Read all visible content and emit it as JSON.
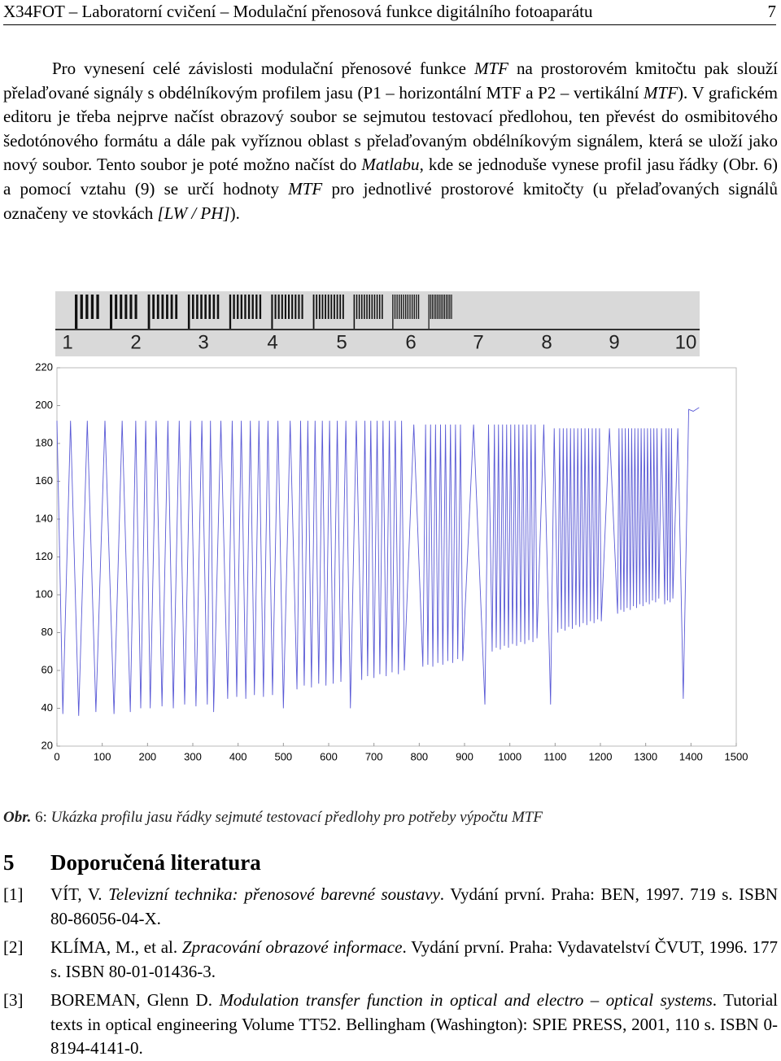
{
  "header": {
    "title": "X34FOT – Laboratorní cvičení – Modulační přenosová funkce digitálního fotoaparátu",
    "page": "7"
  },
  "paragraph": {
    "runs": [
      {
        "text": "Pro vynesení celé závislosti modulační přenosové funkce "
      },
      {
        "text": "MTF",
        "italic": true
      },
      {
        "text": " na prostorovém kmitočtu pak slouží přelaďované signály s obdélníkovým profilem jasu (P1 – horizontální MTF a P2 – vertikální "
      },
      {
        "text": "MTF",
        "italic": true
      },
      {
        "text": "). V grafickém editoru je třeba nejprve načíst obrazový soubor se sejmutou testovací předlohou, ten převést do osmibitového šedotónového formátu a dále pak vyříznou oblast s přelaďovaným obdélníkovým signálem, která se uloží jako nový soubor. Tento soubor je poté možno načíst do "
      },
      {
        "text": "Matlabu",
        "italic": true
      },
      {
        "text": ", kde se jednoduše vynese profil jasu řádky (Obr. 6) a pomocí vztahu (9) se určí hodnoty "
      },
      {
        "text": "MTF",
        "italic": true
      },
      {
        "text": " pro jednotlivé prostorové kmitočty (u přelaďovaných signálů označeny ve stovkách "
      },
      {
        "text": "[LW / PH]",
        "italic": true
      },
      {
        "text": ")."
      }
    ]
  },
  "figure": {
    "scale_labels": [
      "1",
      "2",
      "3",
      "4",
      "5",
      "6",
      "7",
      "8",
      "9",
      "10"
    ],
    "chart_data": {
      "type": "line",
      "x": [
        0,
        13,
        30,
        48,
        67,
        86,
        106,
        126,
        144,
        162,
        174,
        185,
        196,
        206,
        219,
        232,
        245,
        257,
        270,
        282,
        295,
        307,
        320,
        332,
        339,
        346,
        362,
        377,
        387,
        397,
        407,
        417,
        427,
        436,
        446,
        456,
        466,
        476,
        488,
        500,
        515,
        530,
        538,
        546,
        554,
        562,
        570,
        578,
        586,
        594,
        602,
        610,
        619,
        627,
        638,
        648,
        661,
        673,
        680,
        686,
        693,
        700,
        707,
        713,
        720,
        727,
        734,
        740,
        747,
        754,
        761,
        767,
        788,
        808,
        814,
        819,
        825,
        830,
        836,
        841,
        847,
        852,
        858,
        863,
        869,
        874,
        880,
        885,
        891,
        896,
        920,
        945,
        953,
        961,
        966,
        970,
        975,
        979,
        984,
        988,
        993,
        997,
        1002,
        1006,
        1011,
        1015,
        1020,
        1024,
        1029,
        1033,
        1038,
        1042,
        1047,
        1051,
        1056,
        1060,
        1075,
        1090,
        1098,
        1106,
        1110,
        1114,
        1118,
        1122,
        1126,
        1130,
        1134,
        1138,
        1142,
        1146,
        1150,
        1154,
        1158,
        1162,
        1166,
        1170,
        1174,
        1178,
        1182,
        1186,
        1190,
        1194,
        1198,
        1202,
        1220,
        1238,
        1241,
        1245,
        1248,
        1252,
        1255,
        1259,
        1262,
        1266,
        1269,
        1273,
        1276,
        1280,
        1283,
        1287,
        1290,
        1294,
        1297,
        1301,
        1304,
        1308,
        1311,
        1315,
        1318,
        1322,
        1325,
        1329,
        1335,
        1342,
        1345,
        1348,
        1351,
        1354,
        1357,
        1360,
        1371,
        1383,
        1395,
        1405,
        1418
      ],
      "series": [
        {
          "color": "#5a5ad6",
          "values": [
            192,
            37,
            192,
            36,
            192,
            38,
            192,
            37,
            192,
            38,
            192,
            40,
            192,
            40,
            192,
            41,
            192,
            40,
            192,
            42,
            192,
            41,
            192,
            42,
            192,
            38,
            192,
            45,
            192,
            46,
            192,
            45,
            192,
            47,
            192,
            46,
            192,
            47,
            192,
            40,
            192,
            50,
            192,
            52,
            192,
            51,
            192,
            53,
            192,
            52,
            192,
            53,
            192,
            54,
            192,
            40,
            192,
            55,
            192,
            57,
            192,
            56,
            192,
            58,
            192,
            57,
            192,
            59,
            192,
            58,
            192,
            60,
            190,
            62,
            190,
            63,
            190,
            62,
            190,
            64,
            190,
            63,
            190,
            65,
            190,
            64,
            190,
            66,
            190,
            65,
            190,
            42,
            190,
            70,
            190,
            72,
            190,
            71,
            190,
            73,
            190,
            72,
            190,
            74,
            190,
            73,
            190,
            75,
            190,
            74,
            190,
            76,
            190,
            75,
            190,
            77,
            190,
            42,
            188,
            80,
            188,
            82,
            188,
            81,
            188,
            83,
            188,
            82,
            188,
            84,
            188,
            83,
            188,
            85,
            188,
            84,
            188,
            86,
            188,
            85,
            188,
            87,
            188,
            86,
            188,
            90,
            188,
            92,
            188,
            91,
            188,
            93,
            188,
            92,
            188,
            94,
            188,
            93,
            188,
            95,
            188,
            94,
            188,
            96,
            188,
            95,
            188,
            97,
            188,
            96,
            188,
            98,
            188,
            95,
            188,
            97,
            188,
            96,
            188,
            98,
            188,
            45,
            198,
            197,
            199
          ]
        }
      ],
      "xlim": [
        0,
        1500
      ],
      "ylim": [
        20,
        220
      ],
      "xticks": [
        0,
        100,
        200,
        300,
        400,
        500,
        600,
        700,
        800,
        900,
        1000,
        1100,
        1200,
        1300,
        1400,
        1500
      ],
      "yticks": [
        20,
        40,
        60,
        80,
        100,
        120,
        140,
        160,
        180,
        200,
        220
      ]
    },
    "caption": {
      "runs": [
        {
          "text": "Obr.",
          "bold": true,
          "italic": true
        },
        {
          "text": " 6: "
        },
        {
          "text": "Ukázka profilu jasu řádky sejmuté testovací předlohy pro potřeby výpočtu MTF",
          "italic": true
        }
      ]
    }
  },
  "section": {
    "number": "5",
    "title": "Doporučená literatura"
  },
  "references": [
    {
      "number": "[1]",
      "runs": [
        {
          "text": "VÍT, V. "
        },
        {
          "text": "Televizní technika: přenosové barevné soustavy",
          "italic": true
        },
        {
          "text": ". Vydání první. Praha: BEN, 1997. 719 s. ISBN 80-86056-04-X."
        }
      ]
    },
    {
      "number": "[2]",
      "runs": [
        {
          "text": "KLÍMA, M., et al. "
        },
        {
          "text": "Zpracování obrazové informace",
          "italic": true
        },
        {
          "text": ". Vydání první. Praha: Vydavatelství ČVUT, 1996. 177 s. ISBN 80-01-01436-3."
        }
      ]
    },
    {
      "number": "[3]",
      "runs": [
        {
          "text": "BOREMAN, Glenn D. "
        },
        {
          "text": "Modulation transfer function in optical and electro – optical systems",
          "italic": true
        },
        {
          "text": ". Tutorial texts in optical engineering Volume TT52. Bellingham (Washington): SPIE PRESS, 2001, 110 s. ISBN 0-8194-4141-0."
        }
      ]
    }
  ]
}
